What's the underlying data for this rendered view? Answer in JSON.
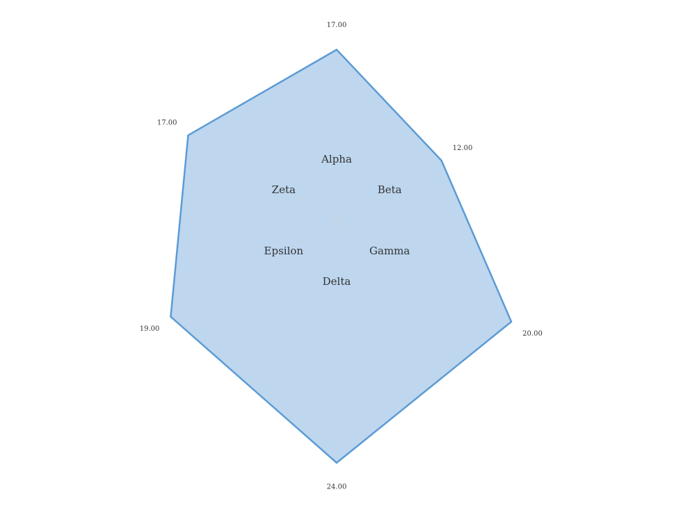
{
  "chart_data": {
    "type": "radar",
    "categories": [
      "Alpha",
      "Beta",
      "Gamma",
      "Delta",
      "Epsilon",
      "Zeta"
    ],
    "values": [
      17,
      12,
      20,
      24,
      19,
      17
    ],
    "value_labels": [
      "17.00",
      "12.00",
      "20.00",
      "24.00",
      "19.00",
      "17.00"
    ],
    "title": "",
    "grid": false,
    "legend": "none",
    "colors": {
      "fill": "#bed6ee",
      "stroke": "#5b9bd5",
      "spoke": "#c8d4e0",
      "label": "#333333"
    }
  }
}
